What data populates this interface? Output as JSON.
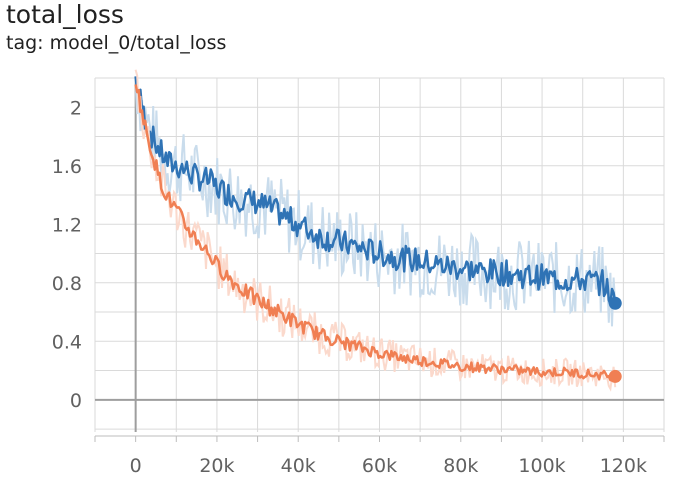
{
  "header": {
    "title": "total_loss",
    "subtitle": "tag: model_0/total_loss"
  },
  "chart_data": {
    "type": "line",
    "title": "total_loss",
    "subtitle": "tag: model_0/total_loss",
    "xlabel": "",
    "ylabel": "",
    "xlim": [
      -10000,
      130000
    ],
    "ylim": [
      -0.22,
      2.2
    ],
    "x_ticks": [
      0,
      20000,
      40000,
      60000,
      80000,
      100000,
      120000
    ],
    "x_tick_labels": [
      "0",
      "20k",
      "40k",
      "60k",
      "80k",
      "100k",
      "120k"
    ],
    "y_ticks": [
      0,
      0.4,
      0.8,
      1.2,
      1.6,
      2.0
    ],
    "y_tick_labels": [
      "0",
      "0.4",
      "0.8",
      "1.2",
      "1.6",
      "2"
    ],
    "grid": true,
    "legend": "none",
    "series": [
      {
        "color": "#2f73b5",
        "raw_color": "#c9dcec",
        "x": [
          0,
          2000,
          4000,
          6000,
          8000,
          10000,
          12000,
          15000,
          18000,
          20000,
          25000,
          30000,
          35000,
          40000,
          45000,
          50000,
          55000,
          60000,
          65000,
          70000,
          75000,
          80000,
          85000,
          90000,
          95000,
          100000,
          105000,
          110000,
          115000,
          118000
        ],
        "values": [
          2.2,
          1.95,
          1.8,
          1.7,
          1.62,
          1.6,
          1.58,
          1.52,
          1.5,
          1.45,
          1.38,
          1.35,
          1.28,
          1.2,
          1.12,
          1.08,
          1.04,
          1.0,
          0.97,
          0.95,
          0.92,
          0.9,
          0.88,
          0.87,
          0.85,
          0.84,
          0.82,
          0.82,
          0.8,
          0.66
        ]
      },
      {
        "color": "#f07f53",
        "raw_color": "#fbd9cc",
        "x": [
          0,
          2000,
          4000,
          6000,
          8000,
          10000,
          12000,
          15000,
          18000,
          20000,
          25000,
          30000,
          35000,
          40000,
          45000,
          50000,
          55000,
          60000,
          65000,
          70000,
          75000,
          80000,
          85000,
          90000,
          95000,
          100000,
          105000,
          110000,
          115000,
          118000
        ],
        "values": [
          2.2,
          1.9,
          1.7,
          1.5,
          1.38,
          1.3,
          1.2,
          1.1,
          1.0,
          0.92,
          0.78,
          0.68,
          0.6,
          0.52,
          0.45,
          0.4,
          0.36,
          0.32,
          0.29,
          0.27,
          0.25,
          0.23,
          0.22,
          0.21,
          0.2,
          0.19,
          0.19,
          0.18,
          0.17,
          0.16
        ]
      }
    ]
  }
}
